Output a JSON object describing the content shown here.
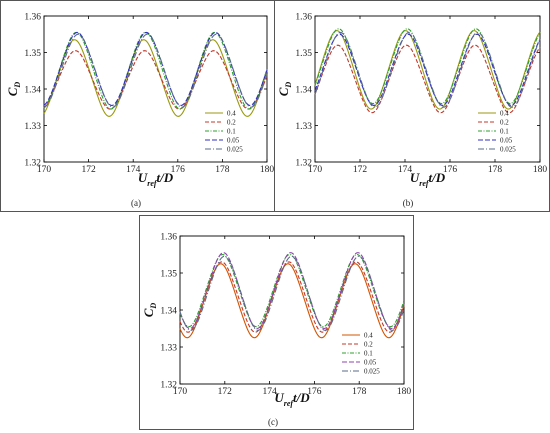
{
  "chart_data": [
    {
      "type": "line",
      "panel": "(a)",
      "xlabel": "U_ref t/D",
      "ylabel": "C_D",
      "xlim": [
        170,
        180
      ],
      "ylim": [
        1.32,
        1.36
      ],
      "xticks": [
        "170",
        "172",
        "174",
        "176",
        "178",
        "180"
      ],
      "yticks": [
        "1.32",
        "1.33",
        "1.34",
        "1.35",
        "1.36"
      ],
      "legend_position": "bottom-right",
      "period": 3.1,
      "phase": 171.45,
      "series": [
        {
          "name": "0.4",
          "color": "#9a9a10",
          "dash": "",
          "max": 1.3535,
          "min": 1.3325
        },
        {
          "name": "0.2",
          "color": "#c0392b",
          "dash": "4 2",
          "max": 1.3505,
          "min": 1.3345
        },
        {
          "name": "0.1",
          "color": "#2ca02c",
          "dash": "4 1.5 1 1.5",
          "max": 1.3555,
          "min": 1.3345
        },
        {
          "name": "0.05",
          "color": "#3030c0",
          "dash": "5 2",
          "max": 1.3555,
          "min": 1.3355
        },
        {
          "name": "0.025",
          "color": "#5a6b8a",
          "dash": "6 2 1 2",
          "max": 1.355,
          "min": 1.335
        }
      ]
    },
    {
      "type": "line",
      "panel": "(b)",
      "xlabel": "U_ref t/D",
      "ylabel": "C_D",
      "xlim": [
        170,
        180
      ],
      "ylim": [
        1.32,
        1.36
      ],
      "xticks": [
        "170",
        "172",
        "174",
        "176",
        "178",
        "180"
      ],
      "yticks": [
        "1.32",
        "1.33",
        "1.34",
        "1.35",
        "1.36"
      ],
      "legend_position": "bottom-right",
      "period": 3.05,
      "phase": 171.05,
      "series": [
        {
          "name": "0.4",
          "color": "#9a9a10",
          "dash": "",
          "max": 1.356,
          "min": 1.3345
        },
        {
          "name": "0.2",
          "color": "#c0392b",
          "dash": "4 2",
          "max": 1.352,
          "min": 1.3335
        },
        {
          "name": "0.1",
          "color": "#2ca02c",
          "dash": "4 1.5 1 1.5",
          "max": 1.3565,
          "min": 1.336
        },
        {
          "name": "0.05",
          "color": "#3030c0",
          "dash": "5 2",
          "max": 1.355,
          "min": 1.3355
        },
        {
          "name": "0.025",
          "color": "#5a6b8a",
          "dash": "6 2 1 2",
          "max": 1.3555,
          "min": 1.335
        }
      ]
    },
    {
      "type": "line",
      "panel": "(c)",
      "xlabel": "U_ref t/D",
      "ylabel": "C_D",
      "xlim": [
        170,
        180
      ],
      "ylim": [
        1.32,
        1.36
      ],
      "xticks": [
        "170",
        "172",
        "174",
        "176",
        "178",
        "180"
      ],
      "yticks": [
        "1.32",
        "1.33",
        "1.34",
        "1.35",
        "1.36"
      ],
      "legend_position": "bottom-right",
      "period": 3.0,
      "phase": 171.9,
      "series": [
        {
          "name": "0.4",
          "color": "#d35400",
          "dash": "",
          "max": 1.3525,
          "min": 1.3325
        },
        {
          "name": "0.2",
          "color": "#c0392b",
          "dash": "4 2",
          "max": 1.353,
          "min": 1.334
        },
        {
          "name": "0.1",
          "color": "#2ca02c",
          "dash": "4 1.5 1 1.5",
          "max": 1.355,
          "min": 1.3355
        },
        {
          "name": "0.05",
          "color": "#8e44ad",
          "dash": "5 2",
          "max": 1.3555,
          "min": 1.335
        },
        {
          "name": "0.025",
          "color": "#5a6b8a",
          "dash": "6 2 1 2",
          "max": 1.3545,
          "min": 1.3345
        }
      ]
    }
  ]
}
